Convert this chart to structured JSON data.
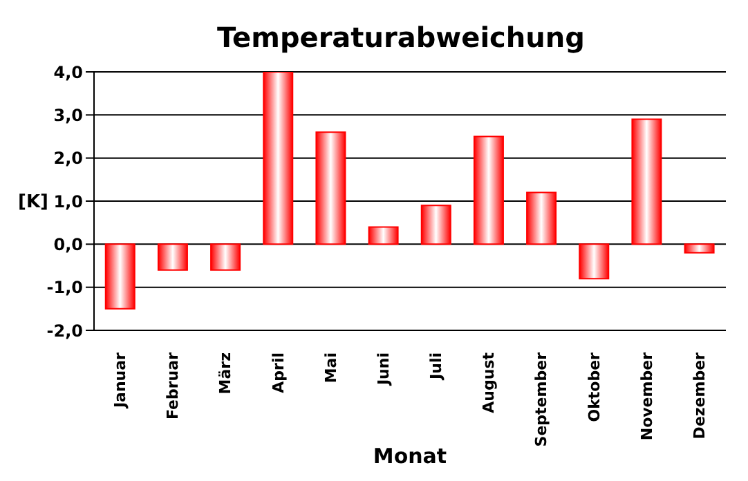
{
  "chart_data": {
    "type": "bar",
    "title": "Temperaturabweichung",
    "xlabel": "Monat",
    "ylabel": "[K]",
    "categories": [
      "Januar",
      "Februar",
      "März",
      "April",
      "Mai",
      "Juni",
      "Juli",
      "August",
      "September",
      "Oktober",
      "November",
      "Dezember"
    ],
    "values": [
      -1.5,
      -0.6,
      -0.6,
      4.0,
      2.6,
      0.4,
      0.9,
      2.5,
      1.2,
      -0.8,
      2.9,
      -0.2
    ],
    "color": "#ff0000",
    "ylim": [
      -2,
      4
    ],
    "yticks": [
      {
        "value": -2,
        "label": "-2,0"
      },
      {
        "value": -1,
        "label": "-1,0"
      },
      {
        "value": 0,
        "label": "0,0"
      },
      {
        "value": 1,
        "label": "1,0"
      },
      {
        "value": 2,
        "label": "2,0"
      },
      {
        "value": 3,
        "label": "3,0"
      },
      {
        "value": 4,
        "label": "4,0"
      }
    ],
    "grid": "y"
  }
}
